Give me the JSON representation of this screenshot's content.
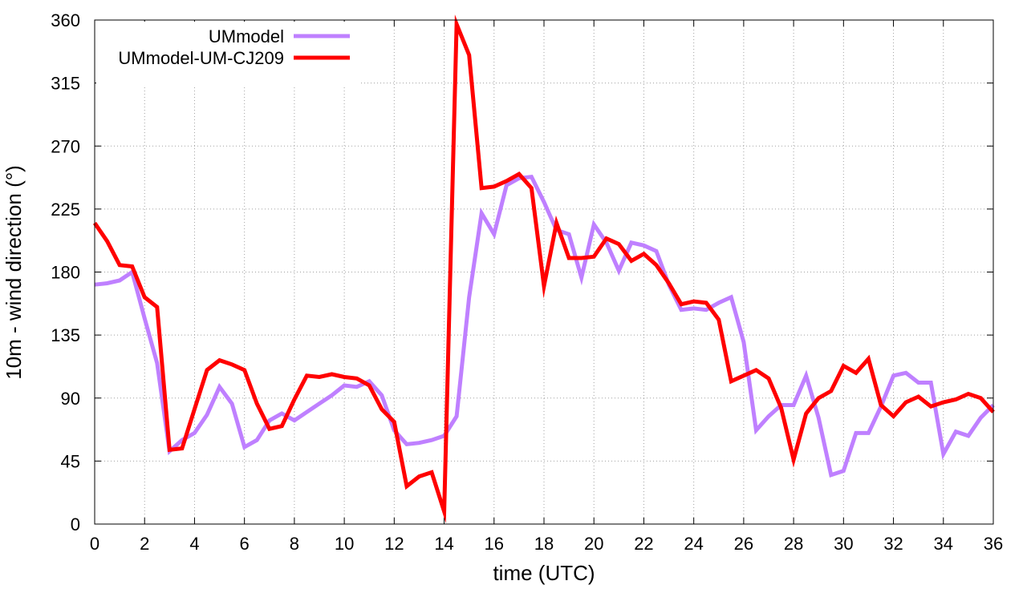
{
  "chart_data": {
    "type": "line",
    "title": "",
    "xlabel": "time (UTC)",
    "ylabel": "10m - wind direction (°)",
    "xlim": [
      0,
      36
    ],
    "ylim": [
      0,
      360
    ],
    "xticks": [
      0,
      2,
      4,
      6,
      8,
      10,
      12,
      14,
      16,
      18,
      20,
      22,
      24,
      26,
      28,
      30,
      32,
      34,
      36
    ],
    "yticks": [
      0,
      45,
      90,
      135,
      180,
      225,
      270,
      315,
      360
    ],
    "grid": true,
    "legend_position": "top-left",
    "series": [
      {
        "name": "UMmodel",
        "color": "#bf80ff",
        "x": [
          0,
          0.5,
          1,
          1.5,
          2,
          2.5,
          3,
          3.5,
          4,
          4.5,
          5,
          5.5,
          6,
          6.5,
          7,
          7.5,
          8,
          8.5,
          9,
          9.5,
          10,
          10.5,
          11,
          11.5,
          12,
          12.5,
          13,
          13.5,
          14,
          14.5,
          15,
          15.5,
          16,
          16.5,
          17,
          17.5,
          18,
          18.5,
          19,
          19.5,
          20,
          20.5,
          21,
          21.5,
          22,
          22.5,
          23,
          23.5,
          24,
          24.5,
          25,
          25.5,
          26,
          26.5,
          27,
          27.5,
          28,
          28.5,
          29,
          29.5,
          30,
          30.5,
          31,
          31.5,
          32,
          32.5,
          33,
          33.5,
          34,
          34.5,
          35,
          35.5,
          36
        ],
        "values": [
          171,
          172,
          174,
          180,
          147,
          115,
          52,
          60,
          65,
          78,
          98,
          86,
          55,
          60,
          74,
          79,
          74,
          80,
          86,
          92,
          99,
          98,
          102,
          92,
          67,
          57,
          58,
          60,
          63,
          77,
          162,
          222,
          207,
          242,
          247,
          248,
          230,
          210,
          207,
          176,
          214,
          201,
          181,
          201,
          199,
          195,
          171,
          153,
          154,
          153,
          158,
          162,
          130,
          67,
          77,
          85,
          85,
          106,
          76,
          35,
          38,
          65,
          65,
          84,
          106,
          108,
          101,
          101,
          50,
          66,
          63,
          76,
          85
        ]
      },
      {
        "name": "UMmodel-UM-CJ209",
        "color": "#ff0000",
        "x": [
          0,
          0.5,
          1,
          1.5,
          2,
          2.5,
          3,
          3.5,
          4,
          4.5,
          5,
          5.5,
          6,
          6.5,
          7,
          7.5,
          8,
          8.5,
          9,
          9.5,
          10,
          10.5,
          11,
          11.5,
          12,
          12.5,
          13,
          13.5,
          14,
          14.5,
          15,
          15.5,
          16,
          16.5,
          17,
          17.5,
          18,
          18.5,
          19,
          19.5,
          20,
          20.5,
          21,
          21.5,
          22,
          22.5,
          23,
          23.5,
          24,
          24.5,
          25,
          25.5,
          26,
          26.5,
          27,
          27.5,
          28,
          28.5,
          29,
          29.5,
          30,
          30.5,
          31,
          31.5,
          32,
          32.5,
          33,
          33.5,
          34,
          34.5,
          35,
          35.5,
          36
        ],
        "values": [
          215,
          202,
          185,
          184,
          162,
          155,
          53,
          54,
          82,
          110,
          117,
          114,
          110,
          86,
          68,
          70,
          89,
          106,
          105,
          107,
          105,
          104,
          99,
          82,
          73,
          27,
          34,
          37,
          9,
          357,
          335,
          240,
          241,
          245,
          250,
          240,
          170,
          215,
          190,
          190,
          191,
          204,
          200,
          188,
          193,
          185,
          172,
          157,
          159,
          158,
          146,
          102,
          106,
          110,
          104,
          83,
          46,
          79,
          90,
          95,
          113,
          108,
          118,
          85,
          77,
          87,
          91,
          84,
          87,
          89,
          93,
          90,
          80
        ]
      }
    ]
  }
}
